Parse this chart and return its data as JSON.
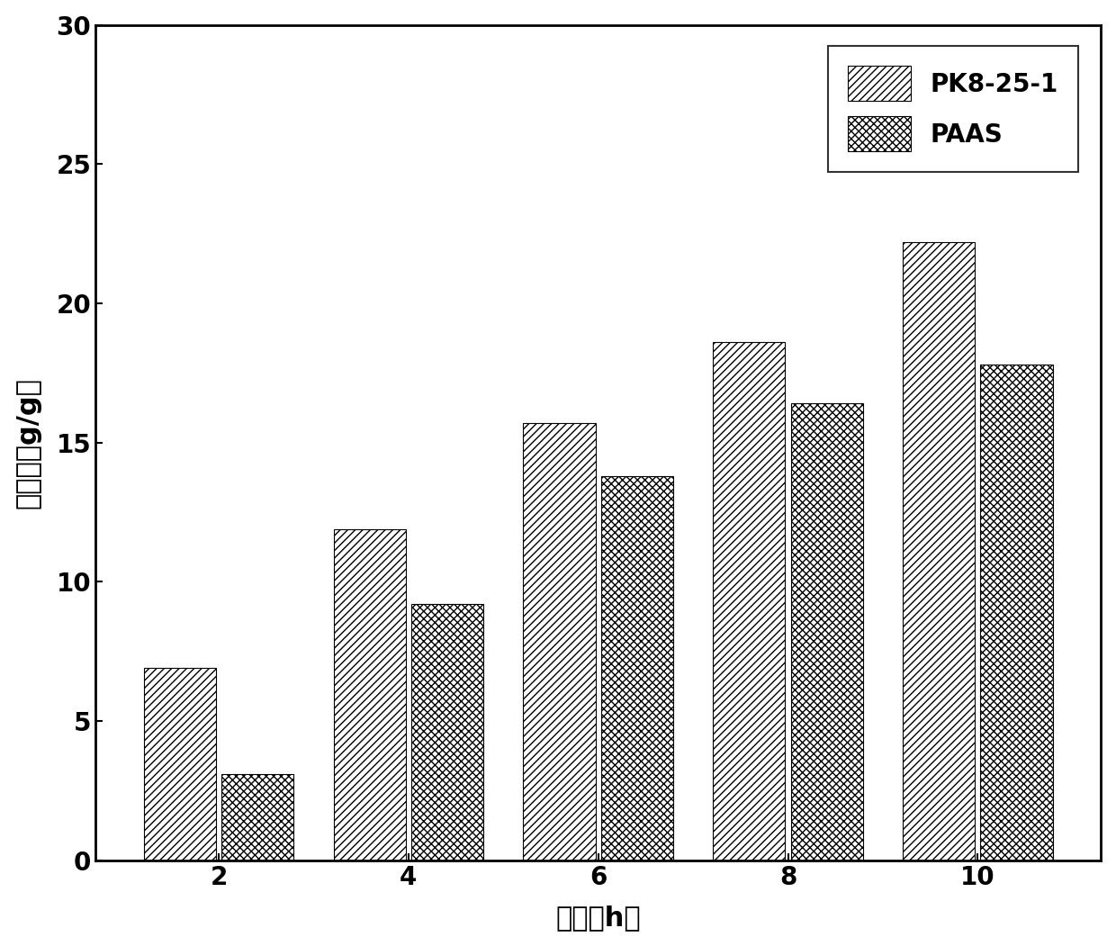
{
  "categories": [
    2,
    4,
    6,
    8,
    10
  ],
  "PK8_25_1": [
    6.9,
    11.9,
    15.7,
    18.6,
    22.2
  ],
  "PAAS": [
    3.1,
    9.2,
    13.8,
    16.4,
    17.8
  ],
  "xlabel": "时间（h）",
  "ylabel": "吸湿率（g/g）",
  "ylim": [
    0,
    30
  ],
  "yticks": [
    0,
    5,
    10,
    15,
    20,
    25,
    30
  ],
  "bar_width": 0.38,
  "legend_labels": [
    "PK8-25-1",
    "PAAS"
  ],
  "hatch_pk": "////",
  "hatch_paas": "xxxx",
  "facecolor": "white",
  "edgecolor": "black",
  "xlabel_fontsize": 22,
  "ylabel_fontsize": 22,
  "tick_fontsize": 20,
  "legend_fontsize": 20,
  "bar_gap": 0.03
}
